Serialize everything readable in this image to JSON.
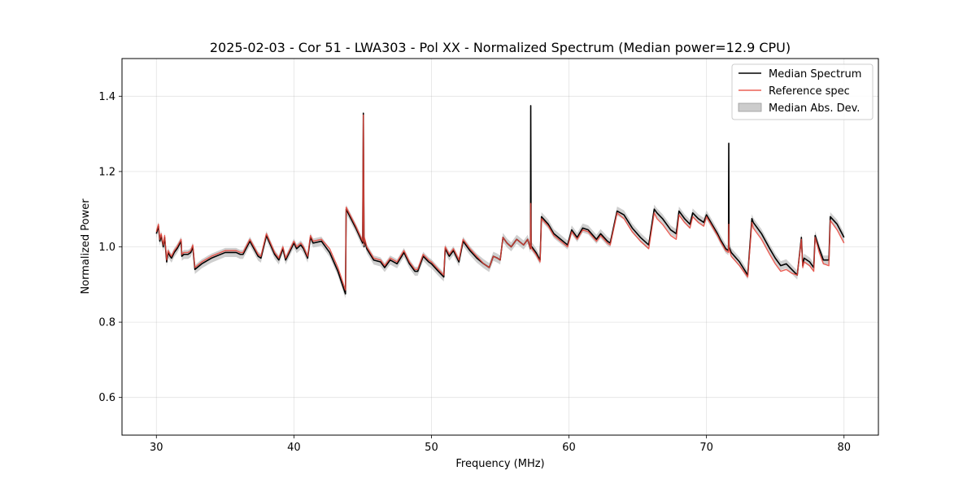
{
  "chart_data": {
    "type": "line",
    "title": "2025-02-03 - Cor 51 - LWA303 - Pol XX - Normalized Spectrum (Median power=12.9 CPU)",
    "xlabel": "Frequency (MHz)",
    "ylabel": "Normalized Power",
    "xlim": [
      27.5,
      82.5
    ],
    "ylim": [
      0.5,
      1.5
    ],
    "xticks": [
      30,
      40,
      50,
      60,
      70,
      80
    ],
    "yticks": [
      0.6,
      0.8,
      1.0,
      1.2,
      1.4
    ],
    "xtick_labels": [
      "30",
      "40",
      "50",
      "60",
      "70",
      "80"
    ],
    "ytick_labels": [
      "0.6",
      "0.8",
      "1.0",
      "1.2",
      "1.4"
    ],
    "grid": true,
    "legend_position": "top-right",
    "series": [
      {
        "name": "Median Spectrum",
        "color": "#000000",
        "x": [
          30.0,
          30.15,
          30.25,
          30.35,
          30.5,
          30.6,
          30.75,
          30.85,
          31.0,
          31.1,
          31.3,
          31.5,
          31.8,
          31.85,
          32.0,
          32.3,
          32.5,
          32.65,
          32.8,
          33.3,
          34.0,
          35.0,
          35.4,
          35.8,
          36.1,
          36.3,
          36.8,
          37.4,
          37.6,
          38.0,
          38.6,
          38.9,
          39.2,
          39.4,
          40.0,
          40.2,
          40.5,
          40.7,
          41.0,
          41.2,
          41.4,
          42.0,
          42.6,
          43.2,
          43.75,
          43.8,
          44.5,
          45.0,
          45.05,
          45.1,
          45.12,
          45.3,
          45.8,
          46.3,
          46.6,
          47.0,
          47.5,
          48.0,
          48.4,
          48.8,
          49.0,
          49.4,
          49.8,
          50.0,
          50.5,
          50.9,
          51.0,
          51.3,
          51.6,
          52.0,
          52.3,
          52.8,
          53.3,
          53.8,
          54.2,
          54.5,
          54.8,
          55.0,
          55.2,
          55.5,
          55.8,
          56.2,
          56.7,
          57.0,
          57.2,
          57.22,
          57.25,
          57.3,
          57.6,
          57.9,
          58.0,
          58.5,
          58.9,
          59.4,
          59.9,
          60.2,
          60.6,
          61.0,
          61.4,
          62.0,
          62.3,
          62.8,
          63.0,
          63.5,
          64.0,
          64.6,
          65.2,
          65.8,
          66.2,
          66.4,
          66.8,
          67.4,
          67.8,
          68.0,
          68.4,
          68.8,
          69.0,
          69.4,
          69.8,
          70.0,
          70.4,
          70.8,
          71.0,
          71.4,
          71.6,
          71.62,
          71.64,
          71.8,
          72.4,
          73.0,
          73.3,
          73.4,
          74.0,
          74.6,
          75.0,
          75.4,
          75.8,
          76.2,
          76.6,
          76.9,
          77.0,
          77.1,
          77.5,
          77.8,
          77.9,
          78.2,
          78.5,
          78.9,
          79.0,
          79.5,
          80.0
        ],
        "y": [
          1.035,
          1.055,
          1.015,
          1.03,
          1.0,
          1.025,
          0.96,
          0.985,
          0.975,
          0.97,
          0.985,
          0.995,
          1.015,
          0.975,
          0.98,
          0.98,
          0.985,
          1.0,
          0.94,
          0.955,
          0.97,
          0.985,
          0.985,
          0.985,
          0.98,
          0.98,
          1.015,
          0.975,
          0.97,
          1.03,
          0.98,
          0.965,
          0.995,
          0.965,
          1.01,
          0.995,
          1.005,
          0.995,
          0.97,
          1.025,
          1.01,
          1.015,
          0.985,
          0.935,
          0.875,
          1.1,
          1.05,
          1.01,
          1.355,
          1.0,
          1.02,
          0.995,
          0.965,
          0.96,
          0.945,
          0.965,
          0.955,
          0.985,
          0.955,
          0.935,
          0.935,
          0.975,
          0.96,
          0.955,
          0.935,
          0.92,
          0.995,
          0.975,
          0.99,
          0.96,
          1.015,
          0.99,
          0.97,
          0.955,
          0.945,
          0.975,
          0.97,
          0.965,
          1.025,
          1.01,
          1.0,
          1.02,
          1.005,
          1.02,
          0.995,
          1.375,
          1.0,
          1.0,
          0.985,
          0.965,
          1.08,
          1.06,
          1.035,
          1.02,
          1.005,
          1.045,
          1.025,
          1.05,
          1.045,
          1.02,
          1.035,
          1.015,
          1.01,
          1.095,
          1.085,
          1.05,
          1.025,
          1.005,
          1.1,
          1.09,
          1.075,
          1.045,
          1.035,
          1.095,
          1.075,
          1.06,
          1.09,
          1.075,
          1.065,
          1.085,
          1.06,
          1.035,
          1.02,
          0.995,
          0.99,
          1.275,
          1.0,
          0.985,
          0.96,
          0.925,
          1.075,
          1.065,
          1.035,
          0.995,
          0.97,
          0.95,
          0.955,
          0.94,
          0.925,
          1.025,
          0.95,
          0.97,
          0.96,
          0.945,
          1.03,
          0.995,
          0.965,
          0.965,
          1.08,
          1.06,
          1.025
        ],
        "spread": 0.012
      },
      {
        "name": "Reference spec",
        "color": "#e8443a",
        "x": [
          30.0,
          30.15,
          30.25,
          30.35,
          30.5,
          30.6,
          30.75,
          30.85,
          31.0,
          31.1,
          31.3,
          31.5,
          31.8,
          31.85,
          32.0,
          32.3,
          32.5,
          32.65,
          32.8,
          33.3,
          34.0,
          35.0,
          35.4,
          35.8,
          36.1,
          36.3,
          36.8,
          37.4,
          37.6,
          38.0,
          38.6,
          38.9,
          39.2,
          39.4,
          40.0,
          40.2,
          40.5,
          40.7,
          41.0,
          41.2,
          41.4,
          42.0,
          42.6,
          43.2,
          43.75,
          43.8,
          44.5,
          45.0,
          45.05,
          45.1,
          45.12,
          45.3,
          45.8,
          46.3,
          46.6,
          47.0,
          47.5,
          48.0,
          48.4,
          48.8,
          49.0,
          49.4,
          49.8,
          50.0,
          50.5,
          50.9,
          51.0,
          51.3,
          51.6,
          52.0,
          52.3,
          52.8,
          53.3,
          53.8,
          54.2,
          54.5,
          54.8,
          55.0,
          55.2,
          55.5,
          55.8,
          56.2,
          56.7,
          57.0,
          57.2,
          57.22,
          57.25,
          57.3,
          57.6,
          57.9,
          58.0,
          58.5,
          58.9,
          59.4,
          59.9,
          60.2,
          60.6,
          61.0,
          61.4,
          62.0,
          62.3,
          62.8,
          63.0,
          63.5,
          64.0,
          64.6,
          65.2,
          65.8,
          66.2,
          66.4,
          66.8,
          67.4,
          67.8,
          68.0,
          68.4,
          68.8,
          69.0,
          69.4,
          69.8,
          70.0,
          70.4,
          70.8,
          71.0,
          71.4,
          71.6,
          71.62,
          71.64,
          71.8,
          72.4,
          73.0,
          73.3,
          73.4,
          74.0,
          74.6,
          75.0,
          75.4,
          75.8,
          76.2,
          76.6,
          76.9,
          77.0,
          77.1,
          77.5,
          77.8,
          77.9,
          78.2,
          78.5,
          78.9,
          79.0,
          79.5,
          80.0
        ],
        "y": [
          1.04,
          1.06,
          1.02,
          1.035,
          1.005,
          1.03,
          0.965,
          0.99,
          0.98,
          0.975,
          0.99,
          1.0,
          1.02,
          0.98,
          0.985,
          0.985,
          0.99,
          1.005,
          0.945,
          0.96,
          0.975,
          0.99,
          0.99,
          0.99,
          0.985,
          0.985,
          1.02,
          0.98,
          0.975,
          1.035,
          0.985,
          0.97,
          1.0,
          0.97,
          1.015,
          1.0,
          1.01,
          1.0,
          0.975,
          1.03,
          1.015,
          1.02,
          0.995,
          0.945,
          0.885,
          1.105,
          1.055,
          1.015,
          1.35,
          1.005,
          1.025,
          1.0,
          0.97,
          0.965,
          0.95,
          0.97,
          0.96,
          0.99,
          0.96,
          0.94,
          0.94,
          0.98,
          0.965,
          0.96,
          0.94,
          0.925,
          1.0,
          0.98,
          0.995,
          0.965,
          1.02,
          0.995,
          0.975,
          0.955,
          0.945,
          0.975,
          0.97,
          0.965,
          1.025,
          1.01,
          1.0,
          1.02,
          1.005,
          1.02,
          0.995,
          1.115,
          1.0,
          0.995,
          0.98,
          0.96,
          1.075,
          1.055,
          1.03,
          1.015,
          1.0,
          1.04,
          1.02,
          1.045,
          1.04,
          1.015,
          1.03,
          1.01,
          1.005,
          1.09,
          1.075,
          1.04,
          1.015,
          0.995,
          1.09,
          1.075,
          1.06,
          1.03,
          1.02,
          1.085,
          1.065,
          1.05,
          1.08,
          1.065,
          1.055,
          1.08,
          1.055,
          1.03,
          1.015,
          0.99,
          0.985,
          1.06,
          0.995,
          0.975,
          0.95,
          0.92,
          1.065,
          1.05,
          1.02,
          0.98,
          0.955,
          0.935,
          0.94,
          0.93,
          0.925,
          1.02,
          0.945,
          0.96,
          0.95,
          0.935,
          1.025,
          0.985,
          0.955,
          0.95,
          1.07,
          1.045,
          1.01
        ]
      }
    ],
    "band": {
      "name": "Median Abs. Dev.",
      "color": "#bfbfbf"
    }
  }
}
